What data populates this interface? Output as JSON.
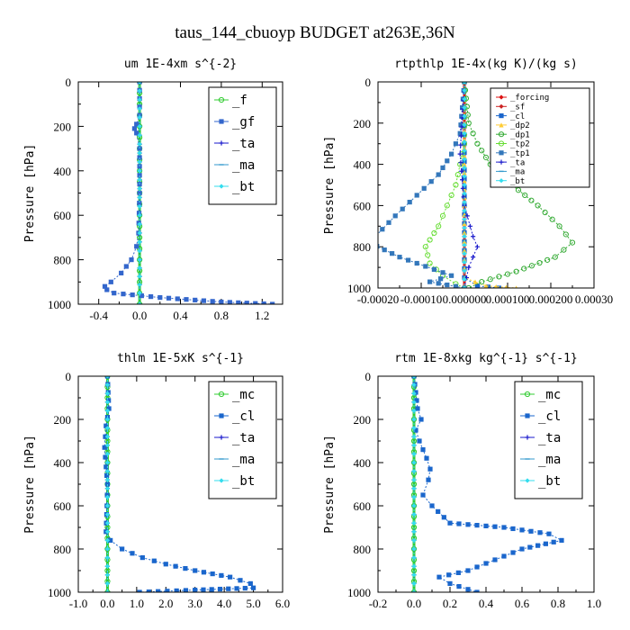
{
  "figure": {
    "title": "taus_144_cbuoyp  BUDGET at263E,36N"
  },
  "colors": {
    "_f": "#33cc33",
    "_gf": "#3366cc",
    "_ta": "#1a1acc",
    "_ma": "#3399cc",
    "_bt": "#33ddee",
    "_mc": "#33cc33",
    "_cl": "#1a66cc",
    "_forcing": "#dd1111",
    "_sf": "#cc2222",
    "_dp2": "#ffcc33",
    "_dp1": "#33aa33",
    "_tp2": "#66dd33",
    "_tp1": "#3377bb"
  },
  "chart_data": [
    {
      "type": "line",
      "title": "um  1E-4xm s^{-2}",
      "ylabel": "Pressure [hPa]",
      "xlim": [
        -0.6,
        1.4
      ],
      "ylim": [
        1000,
        0
      ],
      "xticks": [
        "-0.4",
        "0.0",
        "0.4",
        "0.8",
        "1.2"
      ],
      "xtick_values": [
        -0.4,
        0.0,
        0.4,
        0.8,
        1.2
      ],
      "yticks": [
        "0",
        "200",
        "400",
        "600",
        "800",
        "1000"
      ],
      "ytick_values": [
        0,
        200,
        400,
        600,
        800,
        1000
      ],
      "legend": {
        "position": "top-right",
        "entries": [
          "_f",
          "_gf",
          "_ta",
          "_ma",
          "_bt"
        ]
      },
      "series": [
        {
          "name": "_f",
          "x": [
            0,
            0,
            0,
            0,
            0,
            0,
            0,
            0,
            0,
            0,
            0
          ],
          "y": [
            0,
            100,
            200,
            300,
            400,
            500,
            600,
            700,
            800,
            900,
            1000
          ]
        },
        {
          "name": "_gf",
          "x": [
            0,
            0,
            -0.03,
            -0.05,
            -0.03,
            0,
            0,
            -0.01,
            -0.03,
            -0.08,
            -0.18,
            -0.28,
            -0.34,
            -0.32,
            -0.25,
            0.2,
            0.8,
            1.3
          ],
          "y": [
            0,
            150,
            190,
            210,
            230,
            300,
            500,
            680,
            740,
            800,
            860,
            900,
            920,
            935,
            950,
            970,
            990,
            1000
          ]
        },
        {
          "name": "_ta",
          "x": [
            0,
            0,
            0,
            0,
            0
          ],
          "y": [
            0,
            400,
            800,
            950,
            1000
          ]
        },
        {
          "name": "_ma",
          "x": [
            0,
            0,
            0,
            0,
            0
          ],
          "y": [
            0,
            400,
            800,
            950,
            1000
          ]
        },
        {
          "name": "_bt",
          "x": [
            0,
            0,
            0,
            0,
            0
          ],
          "y": [
            0,
            400,
            800,
            950,
            1000
          ]
        }
      ]
    },
    {
      "type": "line",
      "title": "rtpthlp  1E-4x(kg K)/(kg s)",
      "ylabel": "Pressure [hPa]",
      "xlim": [
        -0.0002,
        0.0003
      ],
      "ylim": [
        1000,
        0
      ],
      "xticks": [
        "-0.00020",
        "-0.00010",
        "0.000000",
        "0.000100",
        "0.000200",
        "0.00030"
      ],
      "xtick_values": [
        -0.0002,
        -0.0001,
        0.0,
        0.0001,
        0.0002,
        0.0003
      ],
      "yticks": [
        "0",
        "200",
        "400",
        "600",
        "800",
        "1000"
      ],
      "ytick_values": [
        0,
        200,
        400,
        600,
        800,
        1000
      ],
      "legend": {
        "position": "top-right",
        "entries": [
          "_forcing",
          "_sf",
          "_cl",
          "_dp2",
          "_dp1",
          "_tp2",
          "_tp1",
          "_ta",
          "_ma",
          "_bt"
        ]
      },
      "series": [
        {
          "name": "_forcing",
          "x": [
            0,
            0,
            0,
            0,
            0
          ],
          "y": [
            0,
            300,
            600,
            900,
            1000
          ]
        },
        {
          "name": "_sf",
          "x": [
            0,
            0,
            0,
            0,
            0
          ],
          "y": [
            0,
            300,
            600,
            900,
            1000
          ]
        },
        {
          "name": "_cl",
          "x": [
            0,
            0,
            0,
            0,
            3e-05,
            8e-05
          ],
          "y": [
            0,
            300,
            600,
            950,
            990,
            1000
          ]
        },
        {
          "name": "_dp2",
          "x": [
            0,
            0,
            0,
            5e-05,
            0.00012
          ],
          "y": [
            0,
            600,
            950,
            990,
            1000
          ]
        },
        {
          "name": "_dp1",
          "x": [
            0,
            1e-05,
            3e-05,
            6e-05,
            0.00011,
            0.00017,
            0.00022,
            0.00025,
            0.00021,
            0.00012,
            4e-05,
            1e-05
          ],
          "y": [
            0,
            200,
            300,
            400,
            500,
            600,
            700,
            780,
            850,
            920,
            970,
            1000
          ]
        },
        {
          "name": "_tp2",
          "x": [
            0,
            0,
            -1e-05,
            -2e-05,
            -4e-05,
            -6e-05,
            -9e-05,
            -8e-05,
            -5e-05,
            -2e-05,
            0
          ],
          "y": [
            0,
            300,
            400,
            500,
            600,
            700,
            800,
            880,
            940,
            980,
            1000
          ]
        },
        {
          "name": "_tp1",
          "x": [
            0,
            -1e-05,
            -3e-05,
            -6e-05,
            -0.00011,
            -0.00016,
            -0.00022,
            -0.00015,
            -3e-05,
            -8e-05,
            0
          ],
          "y": [
            0,
            250,
            350,
            450,
            550,
            650,
            780,
            850,
            940,
            970,
            1000
          ]
        },
        {
          "name": "_ta",
          "x": [
            0,
            -1e-05,
            0,
            2e-05,
            3e-05,
            1e-05,
            0
          ],
          "y": [
            0,
            350,
            600,
            750,
            800,
            900,
            1000
          ]
        },
        {
          "name": "_ma",
          "x": [
            0,
            0,
            0
          ],
          "y": [
            0,
            500,
            1000
          ]
        },
        {
          "name": "_bt",
          "x": [
            0,
            0,
            0
          ],
          "y": [
            0,
            500,
            1000
          ]
        }
      ]
    },
    {
      "type": "line",
      "title": "thlm  1E-5xK s^{-1}",
      "ylabel": "Pressure [hPa]",
      "xlim": [
        -1.0,
        6.0
      ],
      "ylim": [
        1000,
        0
      ],
      "xticks": [
        "-1.0",
        "0.0",
        "1.0",
        "2.0",
        "3.0",
        "4.0",
        "5.0",
        "6.0"
      ],
      "xtick_values": [
        -1,
        0,
        1,
        2,
        3,
        4,
        5,
        6
      ],
      "yticks": [
        "0",
        "200",
        "400",
        "600",
        "800",
        "1000"
      ],
      "ytick_values": [
        0,
        200,
        400,
        600,
        800,
        1000
      ],
      "legend": {
        "position": "top-right",
        "entries": [
          "_mc",
          "_cl",
          "_ta",
          "_ma",
          "_bt"
        ]
      },
      "series": [
        {
          "name": "_mc",
          "x": [
            0,
            0,
            0,
            0,
            0,
            0,
            0,
            0,
            0,
            0,
            0
          ],
          "y": [
            0,
            100,
            200,
            300,
            400,
            500,
            600,
            700,
            800,
            900,
            1000
          ]
        },
        {
          "name": "_cl",
          "x": [
            0,
            0.05,
            -0.05,
            -0.1,
            -0.05,
            0,
            -0.02,
            -0.05,
            0.1,
            0.5,
            1.2,
            2.0,
            3.0,
            4.2,
            4.9,
            5.0,
            3.0,
            1.1
          ],
          "y": [
            0,
            150,
            230,
            330,
            420,
            500,
            600,
            720,
            760,
            800,
            840,
            870,
            900,
            930,
            960,
            980,
            990,
            1000
          ]
        },
        {
          "name": "_ta",
          "x": [
            0,
            0,
            0,
            0
          ],
          "y": [
            0,
            400,
            800,
            1000
          ]
        },
        {
          "name": "_ma",
          "x": [
            0,
            0,
            0,
            0
          ],
          "y": [
            0,
            400,
            800,
            1000
          ]
        },
        {
          "name": "_bt",
          "x": [
            0,
            0,
            0,
            0
          ],
          "y": [
            0,
            400,
            800,
            1000
          ]
        }
      ]
    },
    {
      "type": "line",
      "title": "rtm  1E-8xkg kg^{-1} s^{-1}",
      "ylabel": "Pressure [hPa]",
      "xlim": [
        -0.2,
        1.0
      ],
      "ylim": [
        1000,
        0
      ],
      "xticks": [
        "-0.2",
        "0.0",
        "0.2",
        "0.4",
        "0.6",
        "0.8",
        "1.0"
      ],
      "xtick_values": [
        -0.2,
        0,
        0.2,
        0.4,
        0.6,
        0.8,
        1.0
      ],
      "yticks": [
        "0",
        "200",
        "400",
        "600",
        "800",
        "1000"
      ],
      "ytick_values": [
        0,
        200,
        400,
        600,
        800,
        1000
      ],
      "legend": {
        "position": "top-right",
        "entries": [
          "_mc",
          "_cl",
          "_ta",
          "_ma",
          "_bt"
        ]
      },
      "series": [
        {
          "name": "_mc",
          "x": [
            0,
            0,
            0,
            0,
            0,
            0,
            0,
            0,
            0,
            0,
            0
          ],
          "y": [
            0,
            100,
            200,
            300,
            400,
            500,
            600,
            700,
            800,
            900,
            1000
          ]
        },
        {
          "name": "_cl",
          "x": [
            0,
            0.02,
            0.04,
            0.01,
            0.03,
            0.07,
            0.09,
            0.08,
            0.05,
            0.1,
            0.2,
            0.5,
            0.75,
            0.82,
            0.6,
            0.45,
            0.3,
            0.14,
            0.2,
            0.35
          ],
          "y": [
            0,
            150,
            200,
            250,
            300,
            380,
            430,
            480,
            550,
            600,
            680,
            700,
            730,
            760,
            800,
            850,
            900,
            930,
            960,
            1000
          ]
        },
        {
          "name": "_ta",
          "x": [
            0,
            0,
            0,
            0
          ],
          "y": [
            0,
            400,
            800,
            1000
          ]
        },
        {
          "name": "_ma",
          "x": [
            0,
            0,
            0,
            0
          ],
          "y": [
            0,
            400,
            800,
            1000
          ]
        },
        {
          "name": "_bt",
          "x": [
            0,
            0,
            0,
            0
          ],
          "y": [
            0,
            400,
            800,
            1000
          ]
        }
      ]
    }
  ]
}
